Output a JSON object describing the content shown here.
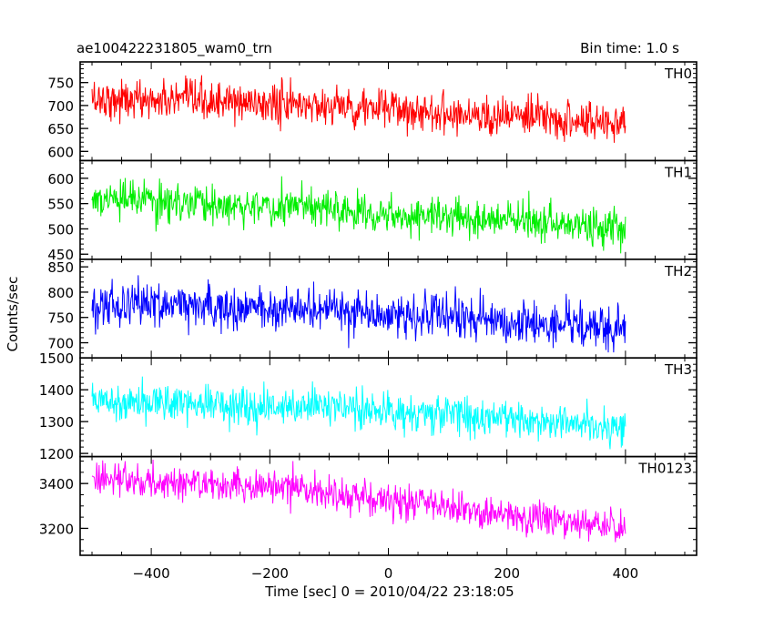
{
  "header": {
    "title": "ae100422231805_wam0_trn",
    "bin_time": "Bin time: 1.0 s"
  },
  "chart_data": {
    "type": "line",
    "xlabel": "Time [sec] 0 = 2010/04/22 23:18:05",
    "ylabel": "Counts/sec",
    "xlim": [
      -520,
      520
    ],
    "x_ticks": [
      -400,
      -200,
      0,
      200,
      400
    ],
    "x_minor_step": 50,
    "t_start": -500,
    "t_end": 400,
    "t_step": 1,
    "grid": false,
    "panels": [
      {
        "label": "TH0",
        "color": "#ff0000",
        "ylim": [
          580,
          795
        ],
        "y_ticks": [
          600,
          650,
          700,
          750
        ],
        "y_minor_step": 10,
        "trend": [
          {
            "x": -500,
            "y": 715
          },
          {
            "x": -100,
            "y": 700
          },
          {
            "x": 400,
            "y": 660
          }
        ],
        "noise": 30,
        "range": [
          615,
          775
        ]
      },
      {
        "label": "TH1",
        "color": "#00ee00",
        "ylim": [
          440,
          635
        ],
        "y_ticks": [
          450,
          500,
          550,
          600
        ],
        "y_minor_step": 10,
        "trend": [
          {
            "x": -500,
            "y": 558
          },
          {
            "x": -100,
            "y": 540
          },
          {
            "x": 400,
            "y": 500
          }
        ],
        "noise": 26,
        "range": [
          450,
          625
        ]
      },
      {
        "label": "TH2",
        "color": "#0000ff",
        "ylim": [
          670,
          865
        ],
        "y_ticks": [
          700,
          750,
          800,
          850
        ],
        "y_minor_step": 10,
        "trend": [
          {
            "x": -500,
            "y": 778
          },
          {
            "x": -100,
            "y": 765
          },
          {
            "x": 400,
            "y": 725
          }
        ],
        "noise": 30,
        "range": [
          675,
          860
        ]
      },
      {
        "label": "TH3",
        "color": "#00ffff",
        "ylim": [
          1190,
          1500
        ],
        "y_ticks": [
          1200,
          1300,
          1400,
          1500
        ],
        "y_minor_step": 20,
        "trend": [
          {
            "x": -500,
            "y": 1370
          },
          {
            "x": -100,
            "y": 1345
          },
          {
            "x": 400,
            "y": 1285
          }
        ],
        "noise": 42,
        "range": [
          1210,
          1490
        ]
      },
      {
        "label": "TH0123",
        "color": "#ff00ff",
        "ylim": [
          3080,
          3520
        ],
        "y_ticks": [
          3200,
          3400
        ],
        "y_minor_step": 50,
        "trend": [
          {
            "x": -500,
            "y": 3420
          },
          {
            "x": -200,
            "y": 3390
          },
          {
            "x": 400,
            "y": 3200
          }
        ],
        "noise": 55,
        "range": [
          3090,
          3510
        ]
      }
    ]
  }
}
